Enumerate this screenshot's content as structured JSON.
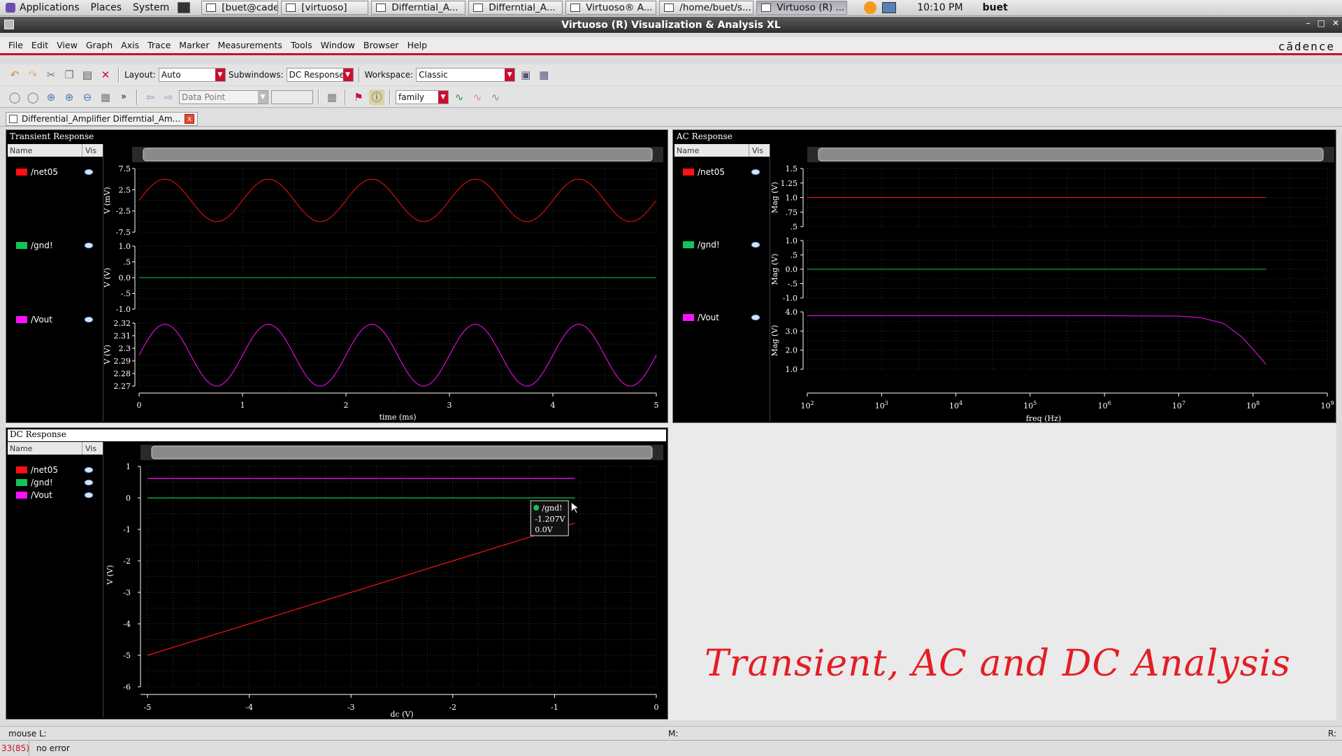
{
  "topbar": {
    "menus": [
      "Applications",
      "Places",
      "System"
    ],
    "tasks": [
      {
        "label": "[buet@caden...",
        "active": false
      },
      {
        "label": "[virtuoso]",
        "active": false
      },
      {
        "label": "Differntial_A...",
        "active": false
      },
      {
        "label": "Differntial_A...",
        "active": false
      },
      {
        "label": "Virtuoso® A...",
        "active": false
      },
      {
        "label": "/home/buet/s...",
        "active": false
      },
      {
        "label": "Virtuoso (R) ...",
        "active": true
      }
    ],
    "clock": "10:10 PM",
    "user": "buet"
  },
  "window": {
    "title": "Virtuoso (R) Visualization & Analysis XL"
  },
  "menubar": {
    "items": [
      "File",
      "Edit",
      "View",
      "Graph",
      "Axis",
      "Trace",
      "Marker",
      "Measurements",
      "Tools",
      "Window",
      "Browser",
      "Help"
    ],
    "brand": "cādence"
  },
  "toolbar1": {
    "layout_label": "Layout:",
    "layout_value": "Auto",
    "subwindows_label": "Subwindows:",
    "subwindows_value": "DC Response",
    "workspace_label": "Workspace:",
    "workspace_value": "Classic"
  },
  "toolbar2": {
    "mode_value": "Data Point",
    "overflow": "»",
    "family_value": "family"
  },
  "doc_tab": {
    "label": "Differential_Amplifier Differntial_Am...",
    "close": "x"
  },
  "colors": {
    "net05": "#ff1010",
    "gnd": "#11c45a",
    "vout": "#ff10ff",
    "accent": "#c8102e"
  },
  "transient": {
    "title": "Transient Response",
    "legend_name": "Name",
    "legend_vis": "Vis",
    "signals": [
      "/net05",
      "/gnd!",
      "/Vout"
    ],
    "xlabel": "time (ms)",
    "xticks": [
      "0",
      "1",
      "2",
      "3",
      "4",
      "5"
    ],
    "panes": [
      {
        "ylabel": "V (mV)",
        "yticks": [
          "7.5",
          "2.5",
          "-2.5",
          "-7.5"
        ]
      },
      {
        "ylabel": "V (V)",
        "yticks": [
          "1.0",
          ".5",
          "0.0",
          "-.5",
          "-1.0"
        ]
      },
      {
        "ylabel": "V (V)",
        "yticks": [
          "2.32",
          "2.31",
          "2.3",
          "2.29",
          "2.28",
          "2.27"
        ]
      }
    ]
  },
  "ac": {
    "title": "AC Response",
    "legend_name": "Name",
    "legend_vis": "Vis",
    "signals": [
      "/net05",
      "/gnd!",
      "/Vout"
    ],
    "xlabel": "freq (Hz)",
    "xticks_exp": [
      "2",
      "3",
      "4",
      "5",
      "6",
      "7",
      "8",
      "9"
    ],
    "panes": [
      {
        "ylabel": "Mag (V)",
        "yticks": [
          "1.5",
          "1.25",
          "1.0",
          ".75",
          ".5"
        ]
      },
      {
        "ylabel": "Mag (V)",
        "yticks": [
          "1.0",
          ".5",
          "0.0",
          "-.5",
          "-1.0"
        ]
      },
      {
        "ylabel": "Mag (V)",
        "yticks": [
          "4.0",
          "3.0",
          "2.0",
          "1.0"
        ]
      }
    ]
  },
  "dc": {
    "title": "DC Response",
    "legend_name": "Name",
    "legend_vis": "Vis",
    "signals": [
      "/net05",
      "/gnd!",
      "/Vout"
    ],
    "xlabel": "dc (V)",
    "ylabel": "V (V)",
    "xticks": [
      "-5",
      "-4",
      "-3",
      "-2",
      "-1",
      "0"
    ],
    "yticks": [
      "1",
      "0",
      "-1",
      "-2",
      "-3",
      "-4",
      "-5",
      "-6"
    ],
    "tooltip": {
      "signal": "/gnd!",
      "x": "-1.207V",
      "y": "0.0V"
    }
  },
  "banner": "Transient, AC and DC Analysis",
  "statusbar": {
    "left": "mouse L:",
    "mid": "M:",
    "right": "R:"
  },
  "errbar": {
    "code": "33(85)",
    "message": "no error"
  },
  "chart_data": [
    {
      "type": "line",
      "title": "Transient Response",
      "xlabel": "time (ms)",
      "xlim": [
        0,
        5
      ],
      "series": [
        {
          "name": "/net05",
          "ylabel": "V (mV)",
          "ylim": [
            -7.5,
            7.5
          ],
          "waveform": "sine",
          "frequency_khz": 1,
          "amplitude": 5,
          "offset": 0
        },
        {
          "name": "/gnd!",
          "ylabel": "V (V)",
          "ylim": [
            -1.0,
            1.0
          ],
          "waveform": "constant",
          "value": 0
        },
        {
          "name": "/Vout",
          "ylabel": "V (V)",
          "ylim": [
            2.27,
            2.32
          ],
          "waveform": "sine",
          "frequency_khz": 1,
          "amplitude": 0.0245,
          "offset": 2.2945
        }
      ]
    },
    {
      "type": "line",
      "title": "AC Response",
      "xlabel": "freq (Hz)",
      "xscale": "log",
      "xlim": [
        100,
        1000000000
      ],
      "series": [
        {
          "name": "/net05",
          "ylabel": "Mag (V)",
          "ylim": [
            0.5,
            1.5
          ],
          "x": [
            100,
            150000000
          ],
          "y": [
            1.0,
            1.0
          ]
        },
        {
          "name": "/gnd!",
          "ylabel": "Mag (V)",
          "ylim": [
            -1.0,
            1.0
          ],
          "x": [
            100,
            150000000
          ],
          "y": [
            0.0,
            0.0
          ]
        },
        {
          "name": "/Vout",
          "ylabel": "Mag (V)",
          "ylim": [
            1.0,
            4.0
          ],
          "x": [
            100,
            1000000,
            10000000,
            20000000,
            40000000,
            70000000,
            100000000,
            150000000
          ],
          "y": [
            3.8,
            3.8,
            3.78,
            3.7,
            3.4,
            2.7,
            2.05,
            1.25
          ]
        }
      ]
    },
    {
      "type": "line",
      "title": "DC Response",
      "xlabel": "dc (V)",
      "ylabel": "V (V)",
      "xlim": [
        -5,
        0
      ],
      "ylim": [
        -6,
        1
      ],
      "series": [
        {
          "name": "/net05",
          "x": [
            -5,
            -0.8
          ],
          "y": [
            -5.0,
            -0.8
          ]
        },
        {
          "name": "/gnd!",
          "x": [
            -5,
            -0.8
          ],
          "y": [
            0.0,
            0.0
          ]
        },
        {
          "name": "/Vout",
          "x": [
            -5,
            -0.8
          ],
          "y": [
            0.62,
            0.62
          ]
        }
      ]
    }
  ]
}
